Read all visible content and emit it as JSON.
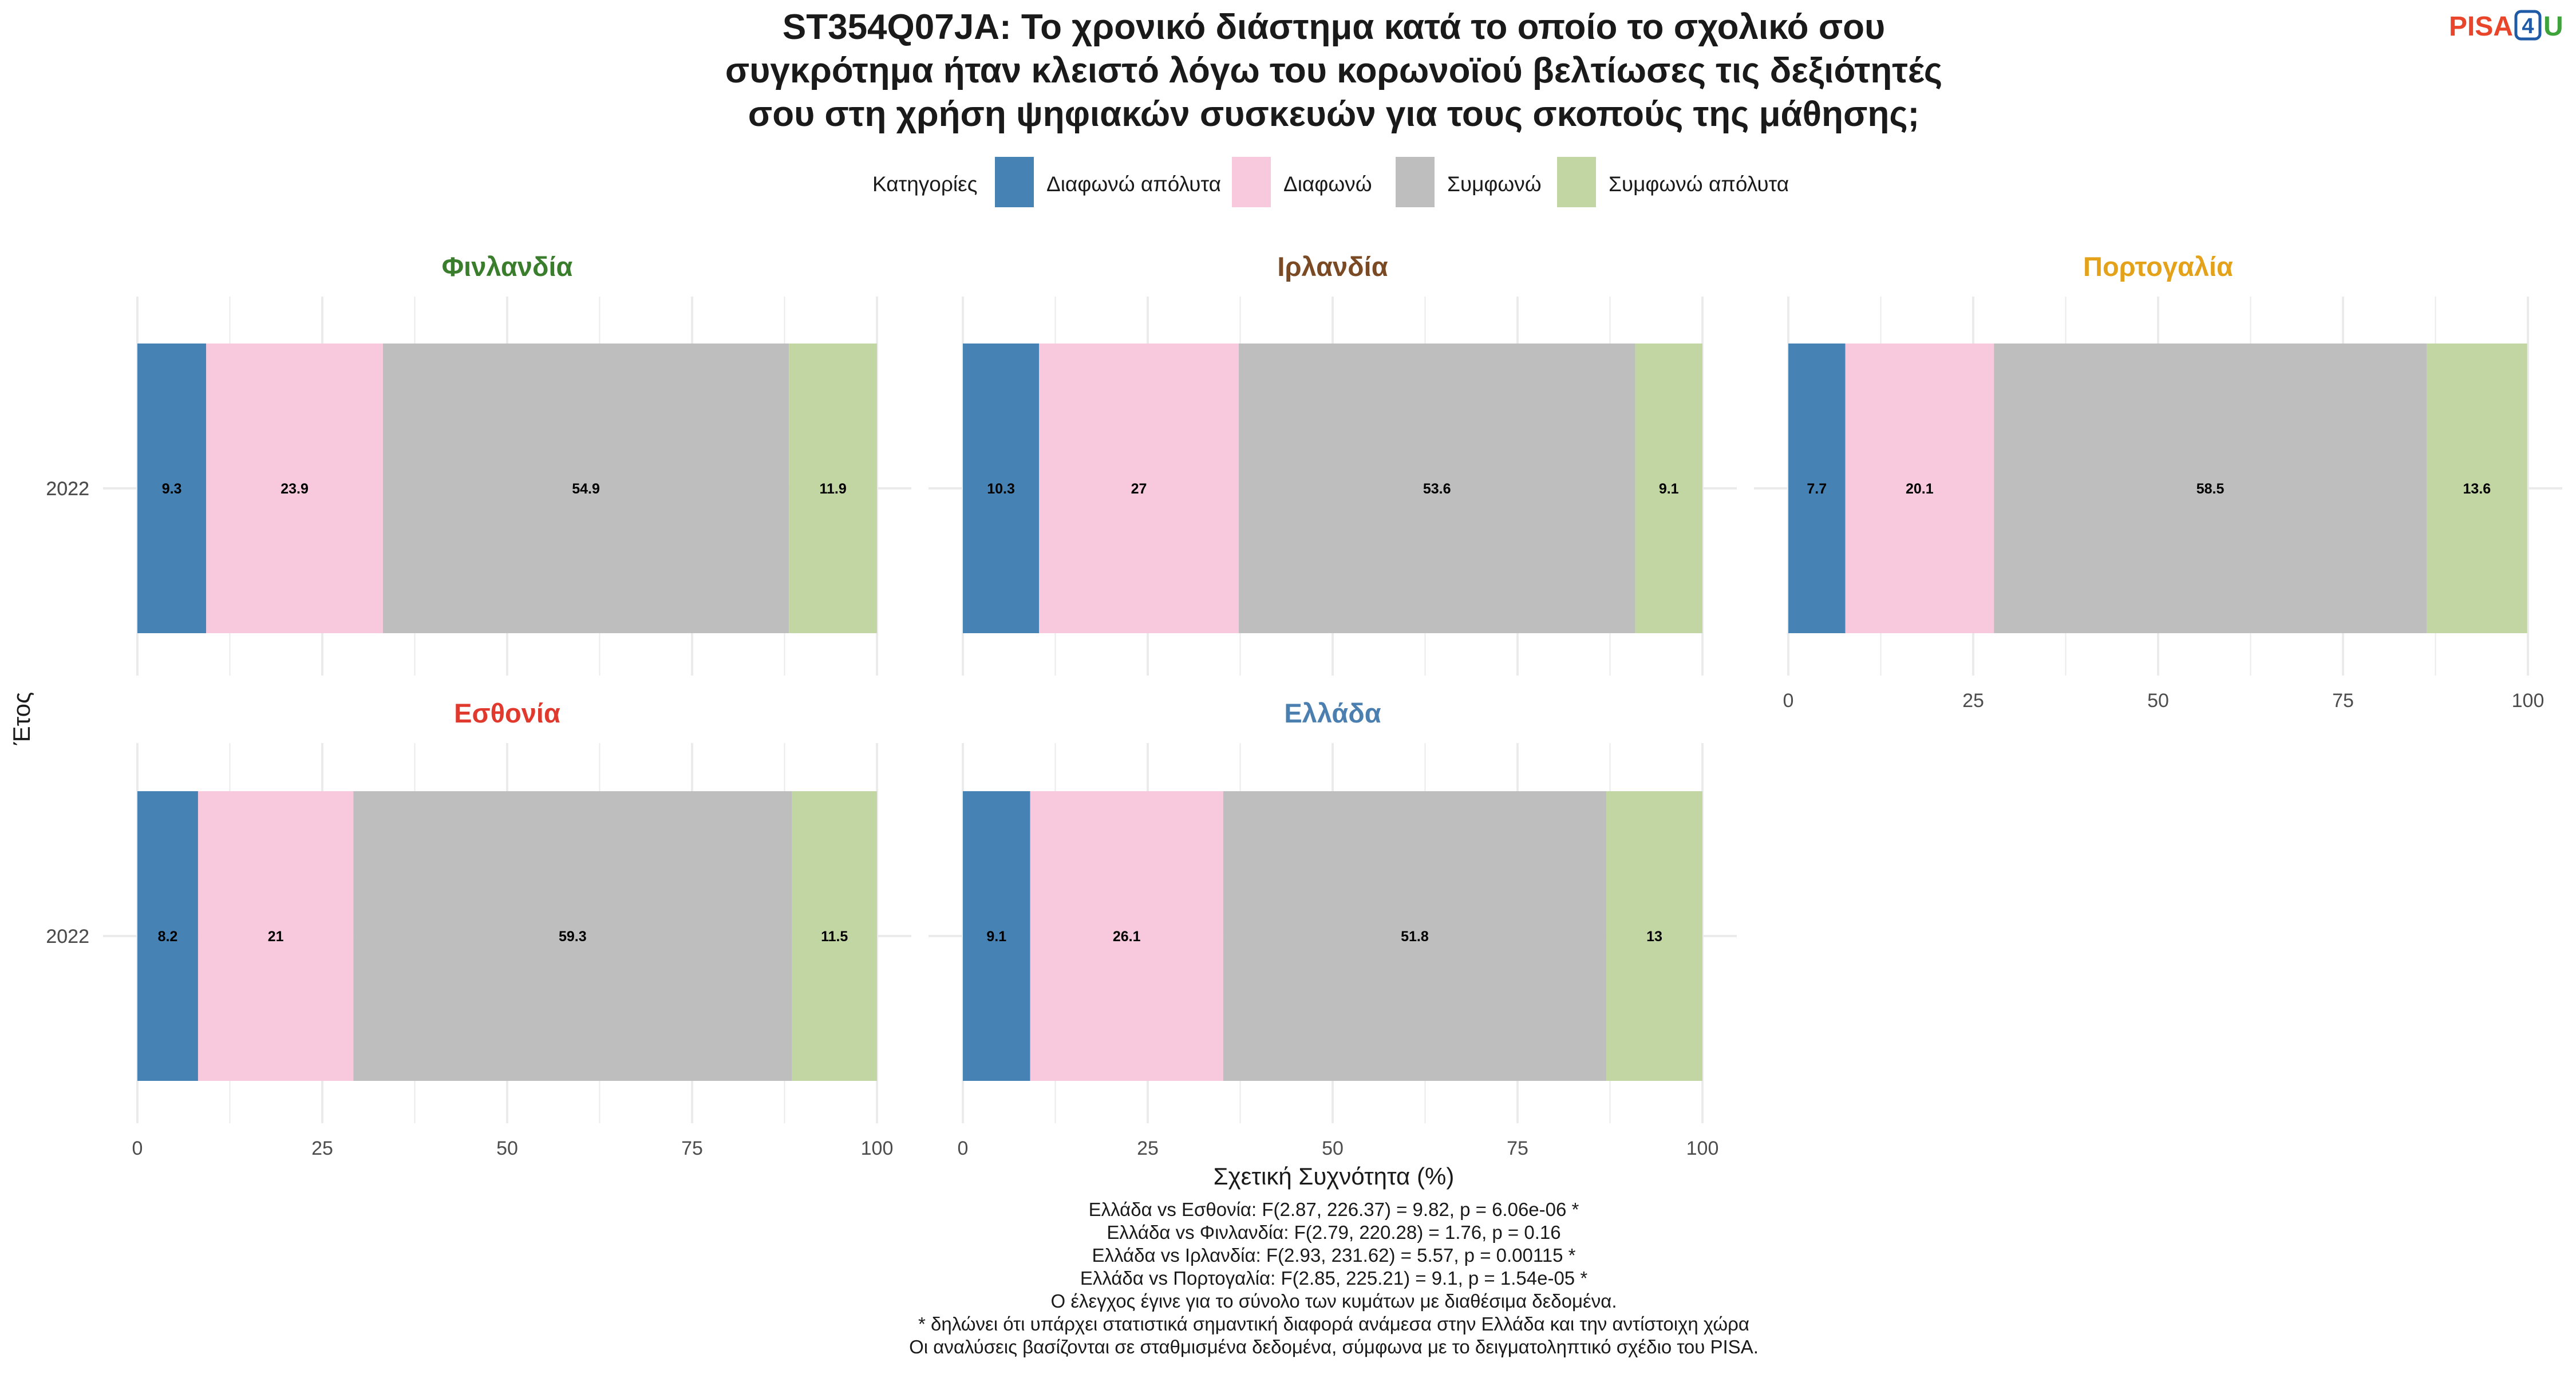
{
  "title_lines": [
    "ST354Q07JA: Το χρονικό διάστημα κατά το οποίο το σχολικό σου",
    "συγκρότημα ήταν κλειστό λόγω του κορωνοϊού βελτίωσες τις δεξιότητές",
    "σου στη χρήση ψηφιακών συσκευών για τους σκοπούς της μάθησης;"
  ],
  "logo": {
    "pisa": "PISA",
    "four": "4",
    "u": "U"
  },
  "legend": {
    "title": "Κατηγορίες",
    "items": [
      {
        "label": "Διαφωνώ απόλυτα",
        "color": "#4682b4"
      },
      {
        "label": "Διαφωνώ",
        "color": "#f8c8dc"
      },
      {
        "label": "Συμφωνώ",
        "color": "#bebebe"
      },
      {
        "label": "Συμφωνώ απόλυτα",
        "color": "#c2d6a4"
      }
    ]
  },
  "chart_data": {
    "type": "bar",
    "orientation": "horizontal",
    "stacked": true,
    "xlabel": "Σχετική Συχνότητα (%)",
    "ylabel": "Έτος",
    "xlim": [
      0,
      100
    ],
    "xticks": [
      0,
      25,
      50,
      75,
      100
    ],
    "grid": true,
    "legend_position": "top",
    "panels": [
      {
        "name": "Φινλανδία",
        "title_color": "#3a7d2c",
        "year": "2022",
        "values": [
          9.3,
          23.9,
          54.9,
          11.9
        ]
      },
      {
        "name": "Ιρλανδία",
        "title_color": "#7a4a24",
        "year": "2022",
        "values": [
          10.3,
          27,
          53.6,
          9.1
        ]
      },
      {
        "name": "Πορτογαλία",
        "title_color": "#e3a21a",
        "year": "2022",
        "values": [
          7.7,
          20.1,
          58.5,
          13.6
        ]
      },
      {
        "name": "Εσθονία",
        "title_color": "#e03a2e",
        "year": "2022",
        "values": [
          8.2,
          21,
          59.3,
          11.5
        ]
      },
      {
        "name": "Ελλάδα",
        "title_color": "#4a7fb0",
        "year": "2022",
        "values": [
          9.1,
          26.1,
          51.8,
          13
        ]
      }
    ]
  },
  "footnotes": [
    "Ελλάδα vs Εσθονία: F(2.87, 226.37) = 9.82, p = 6.06e-06 *",
    "Ελλάδα vs Φινλανδία: F(2.79, 220.28) = 1.76, p = 0.16",
    "Ελλάδα vs Ιρλανδία: F(2.93, 231.62) = 5.57, p = 0.00115 *",
    "Ελλάδα vs Πορτογαλία: F(2.85, 225.21) = 9.1, p = 1.54e-05 *",
    "Ο έλεγχος έγινε για το σύνολο των κυμάτων με διαθέσιμα δεδομένα.",
    "* δηλώνει ότι υπάρχει στατιστικά σημαντική διαφορά ανάμεσα στην Ελλάδα και την αντίστοιχη χώρα",
    "Οι αναλύσεις βασίζονται σε σταθμισμένα δεδομένα, σύμφωνα με το δειγματοληπτικό σχέδιο του PISA."
  ]
}
